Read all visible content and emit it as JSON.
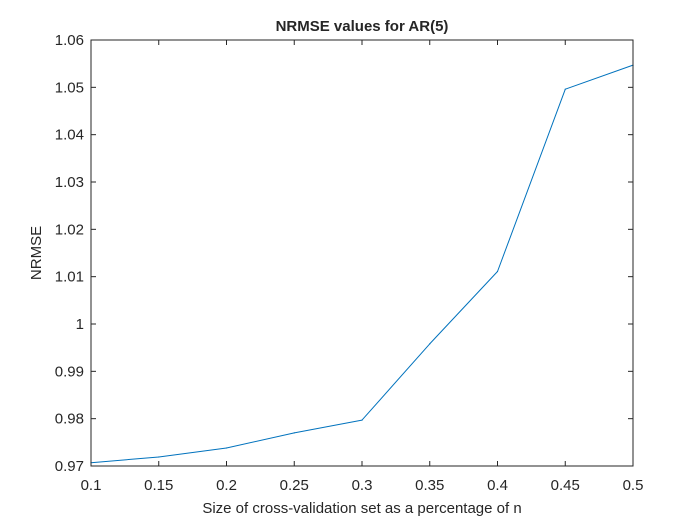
{
  "chart_data": {
    "type": "line",
    "title": "NRMSE values for AR(5)",
    "xlabel": "Size of cross-validation set as a percentage of n",
    "ylabel": "NRMSE",
    "xlim": [
      0.1,
      0.5
    ],
    "ylim": [
      0.97,
      1.06
    ],
    "xticks": [
      0.1,
      0.15,
      0.2,
      0.25,
      0.3,
      0.35,
      0.4,
      0.45,
      0.5
    ],
    "xtick_labels": [
      "0.1",
      "0.15",
      "0.2",
      "0.25",
      "0.3",
      "0.35",
      "0.4",
      "0.45",
      "0.5"
    ],
    "yticks": [
      0.97,
      0.98,
      0.99,
      1.0,
      1.01,
      1.02,
      1.03,
      1.04,
      1.05,
      1.06
    ],
    "ytick_labels": [
      "0.97",
      "0.98",
      "0.99",
      "1",
      "1.01",
      "1.02",
      "1.03",
      "1.04",
      "1.05",
      "1.06"
    ],
    "grid": false,
    "series": [
      {
        "color": "#0072BD",
        "x": [
          0.1,
          0.15,
          0.2,
          0.25,
          0.3,
          0.35,
          0.4,
          0.45,
          0.5
        ],
        "y": [
          0.9707,
          0.9719,
          0.9738,
          0.977,
          0.9797,
          0.9958,
          1.0111,
          1.0496,
          1.0547
        ]
      }
    ]
  }
}
